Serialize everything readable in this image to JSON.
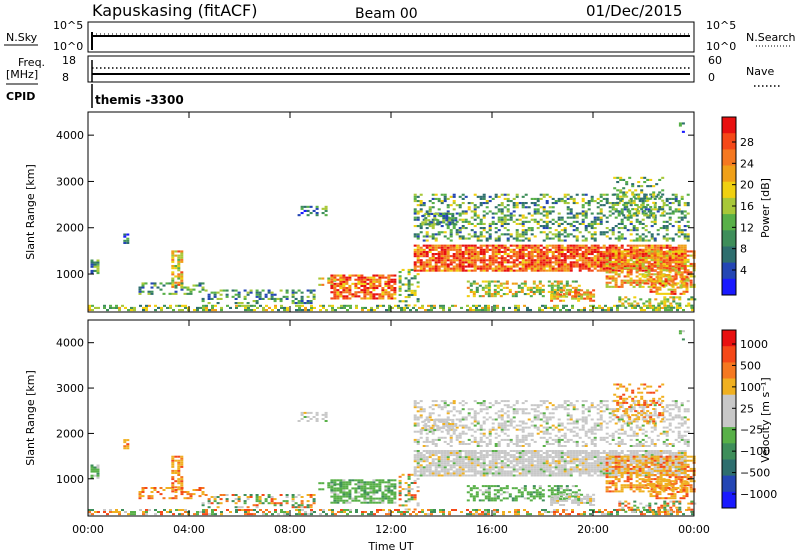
{
  "header": {
    "station": "Kapuskasing (fitACF)",
    "beam": "Beam 00",
    "date": "01/Dec/2015"
  },
  "noise_panel": {
    "left_label": "N.Sky",
    "right_label": "N.Search",
    "left_ticks": [
      "10^5",
      "10^0"
    ],
    "right_ticks": [
      "10^5",
      "10^0"
    ]
  },
  "freq_panel": {
    "left_label_1": "Freq.",
    "left_label_2": "[MHz]",
    "cpid_label": "CPID",
    "right_label": "Nave",
    "left_ticks": [
      "18",
      "8"
    ],
    "right_ticks": [
      "60",
      "0"
    ]
  },
  "cpid_text": "themis -3300",
  "colors": {
    "power": [
      "#1a1aff",
      "#2446b4",
      "#2e6e6e",
      "#3e8e5a",
      "#58b048",
      "#a8c838",
      "#f0d010",
      "#f0a018",
      "#f57820",
      "#f54818",
      "#e81010"
    ],
    "velocity": [
      "#1a1aff",
      "#2446b4",
      "#2e6e6e",
      "#3e8e5a",
      "#58b048",
      "#c8c8c8",
      "#c8c8c8",
      "#f0b020",
      "#f57820",
      "#f54818",
      "#e81010"
    ],
    "ground_scatter": "#c8c8c8"
  },
  "chart_data": [
    {
      "type": "heatmap",
      "name": "power",
      "xlabel": "",
      "ylabel": "Slant Range [km]",
      "y_ticks": [
        1000,
        2000,
        3000,
        4000
      ],
      "ylim": [
        180,
        4500
      ],
      "colorbar_label": "Power [dB]",
      "colorbar_ticks": [
        "28",
        "24",
        "20",
        "16",
        "12",
        "8",
        "4"
      ],
      "colorbar_range": [
        0,
        30
      ]
    },
    {
      "type": "heatmap",
      "name": "velocity",
      "xlabel": "Time UT",
      "ylabel": "Slant Range [km]",
      "x_ticks": [
        "00:00",
        "04:00",
        "08:00",
        "12:00",
        "16:00",
        "20:00",
        "00:00"
      ],
      "y_ticks": [
        1000,
        2000,
        3000,
        4000
      ],
      "ylim": [
        180,
        4500
      ],
      "colorbar_label": "Velocity [m s⁻¹]",
      "colorbar_ticks": [
        "1000",
        "500",
        "100",
        "25",
        "−25",
        "−100",
        "−500",
        "−1000"
      ]
    }
  ]
}
